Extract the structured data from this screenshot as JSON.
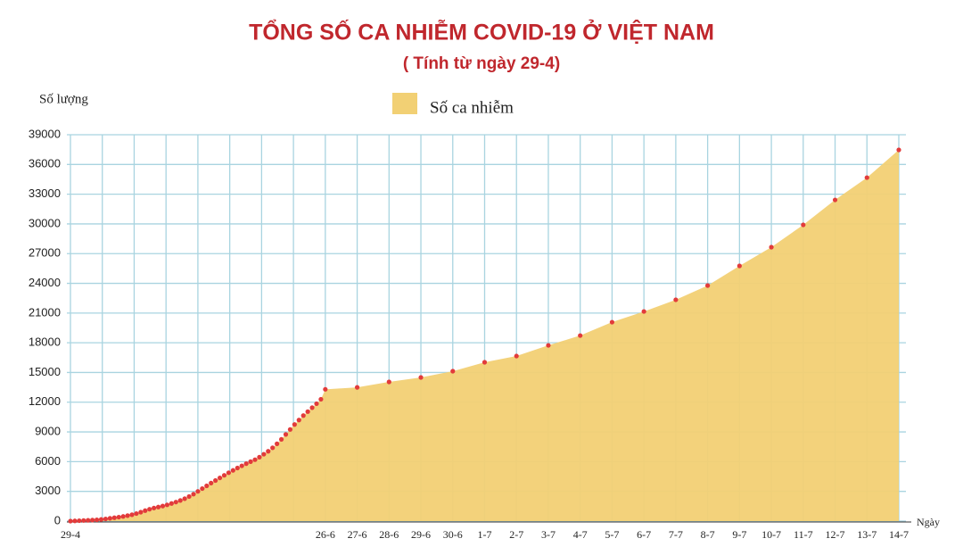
{
  "chart_data": {
    "type": "area",
    "title": "TỔNG SỐ CA NHIỄM COVID-19 Ở VIỆT NAM",
    "subtitle": "( Tính từ ngày 29-4)",
    "y_label": "Số lượng",
    "x_label": "Ngày",
    "categories": [
      "29-4",
      null,
      null,
      null,
      null,
      null,
      null,
      null,
      null,
      null,
      null,
      null,
      null,
      null,
      null,
      null,
      null,
      null,
      null,
      null,
      null,
      null,
      null,
      null,
      null,
      null,
      null,
      null,
      null,
      null,
      null,
      null,
      null,
      null,
      null,
      null,
      null,
      null,
      null,
      null,
      null,
      null,
      null,
      null,
      null,
      null,
      null,
      null,
      null,
      null,
      null,
      null,
      null,
      null,
      null,
      null,
      null,
      null,
      "26-6",
      "27-6",
      "28-6",
      "29-6",
      "30-6",
      "1-7",
      "2-7",
      "3-7",
      "4-7",
      "5-7",
      "6-7",
      "7-7",
      "8-7",
      "9-7",
      "10-7",
      "11-7",
      "12-7",
      "13-7",
      "14-7"
    ],
    "series": [
      {
        "name": "Số ca nhiễm",
        "color": "#f2d074",
        "marker_color": "#e23b3b",
        "values": [
          0,
          20,
          40,
          60,
          80,
          100,
          130,
          170,
          220,
          280,
          340,
          400,
          470,
          550,
          640,
          760,
          900,
          1060,
          1200,
          1320,
          1420,
          1520,
          1640,
          1780,
          1920,
          2080,
          2260,
          2480,
          2720,
          3000,
          3280,
          3560,
          3840,
          4100,
          4360,
          4620,
          4880,
          5120,
          5360,
          5580,
          5800,
          6000,
          6200,
          6450,
          6750,
          7050,
          7400,
          7800,
          8250,
          8750,
          9250,
          9750,
          10200,
          10650,
          11050,
          11450,
          11850,
          12300,
          13300,
          13500,
          14050,
          14500,
          15130,
          16030,
          16660,
          17740,
          18730,
          20080,
          21160,
          22340,
          23780,
          25760,
          27650,
          29900,
          32420,
          34670,
          37470
        ]
      }
    ],
    "ylim": [
      0,
      39000
    ],
    "yticks": [
      0,
      3000,
      6000,
      9000,
      12000,
      15000,
      18000,
      21000,
      24000,
      27000,
      30000,
      33000,
      36000,
      39000
    ],
    "grid": true
  }
}
